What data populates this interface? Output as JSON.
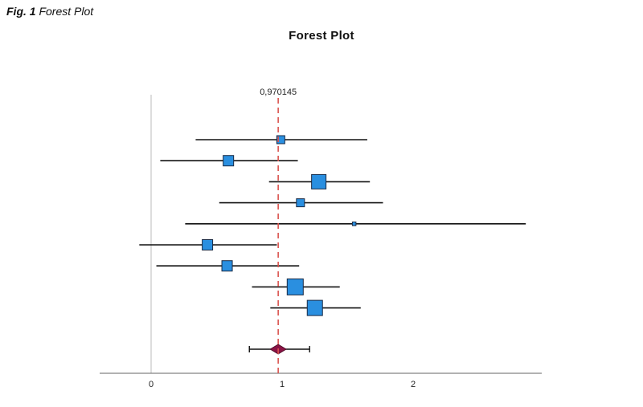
{
  "figure": {
    "label_prefix": "Fig. 1",
    "label_text": "Forest Plot"
  },
  "chart_data": {
    "type": "forest",
    "title": "Forest Plot",
    "xlabel": "",
    "ylabel": "",
    "xlim": [
      -0.4,
      2.95
    ],
    "ticks": [
      0,
      1,
      2
    ],
    "tick_labels": [
      "0",
      "1",
      "2"
    ],
    "reference_line": {
      "value": 0.970145,
      "label": "0,970145",
      "style": "dashed",
      "color": "#d9534f"
    },
    "null_line": {
      "value": 0,
      "color": "#bbbbbb"
    },
    "studies": [
      {
        "estimate": 0.99,
        "lower": 0.34,
        "upper": 1.65,
        "weight": 1.0
      },
      {
        "estimate": 0.59,
        "lower": 0.07,
        "upper": 1.12,
        "weight": 1.3
      },
      {
        "estimate": 1.28,
        "lower": 0.9,
        "upper": 1.67,
        "weight": 1.8
      },
      {
        "estimate": 1.14,
        "lower": 0.52,
        "upper": 1.77,
        "weight": 1.0
      },
      {
        "estimate": 1.55,
        "lower": 0.26,
        "upper": 2.86,
        "weight": 0.45
      },
      {
        "estimate": 0.43,
        "lower": -0.09,
        "upper": 0.96,
        "weight": 1.3
      },
      {
        "estimate": 0.58,
        "lower": 0.04,
        "upper": 1.13,
        "weight": 1.3
      },
      {
        "estimate": 1.1,
        "lower": 0.77,
        "upper": 1.44,
        "weight": 2.0
      },
      {
        "estimate": 1.25,
        "lower": 0.91,
        "upper": 1.6,
        "weight": 1.9
      }
    ],
    "summary": {
      "estimate": 0.97,
      "lower": 0.75,
      "upper": 1.21
    },
    "colors": {
      "box_fill": "#2a8fe0",
      "box_stroke": "#1a2a44",
      "diamond_fill": "#8b1345",
      "ci_line": "#111111",
      "axis": "#666666"
    }
  }
}
